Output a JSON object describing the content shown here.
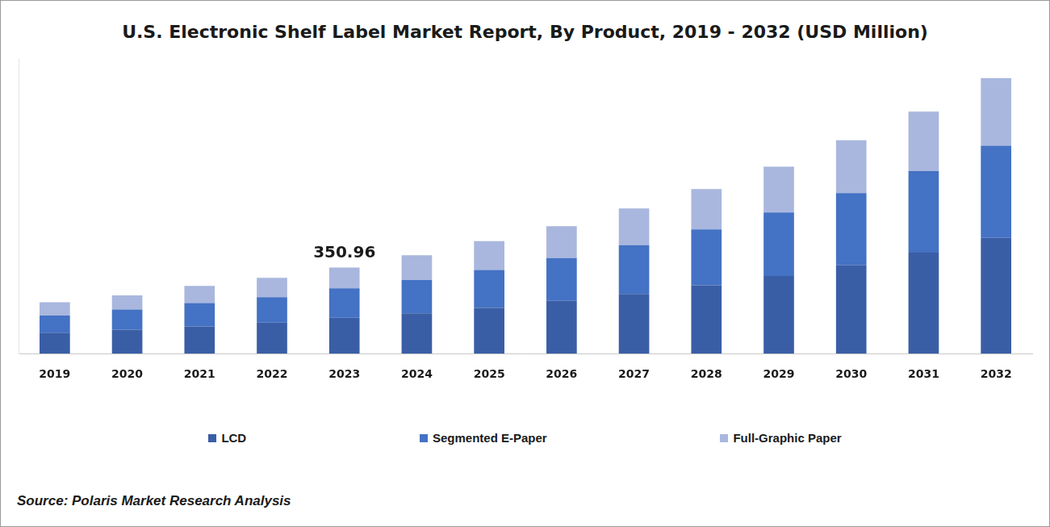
{
  "chart_data": {
    "type": "bar",
    "title": "U.S. Electronic Shelf Label Market Report, By Product, 2019 - 2032 (USD Million)",
    "categories": [
      "2019",
      "2020",
      "2021",
      "2022",
      "2023",
      "2024",
      "2025",
      "2026",
      "2027",
      "2028",
      "2029",
      "2030",
      "2031",
      "2032"
    ],
    "series": [
      {
        "name": "LCD",
        "color": "#3a5ea6",
        "values": [
          85,
          98,
          111,
          126,
          146,
          164,
          186,
          215,
          243,
          278,
          316,
          360,
          411,
          471
        ]
      },
      {
        "name": "Segmented E-Paper",
        "color": "#4472c4",
        "values": [
          70,
          82,
          95,
          104,
          120,
          136,
          155,
          174,
          199,
          228,
          259,
          294,
          332,
          376
        ]
      },
      {
        "name": "Full-Graphic Paper",
        "color": "#a9b7de",
        "values": [
          54,
          57,
          70,
          79,
          85,
          101,
          117,
          130,
          149,
          164,
          186,
          215,
          243,
          275
        ]
      }
    ],
    "stacked": true,
    "ylim": [
      0,
      1200
    ],
    "grid": false,
    "legend": "bottom",
    "tick_labels": "x",
    "annotations": [
      {
        "category": "2023",
        "text": "350.96"
      }
    ],
    "source": "Source: Polaris Market Research Analysis"
  }
}
